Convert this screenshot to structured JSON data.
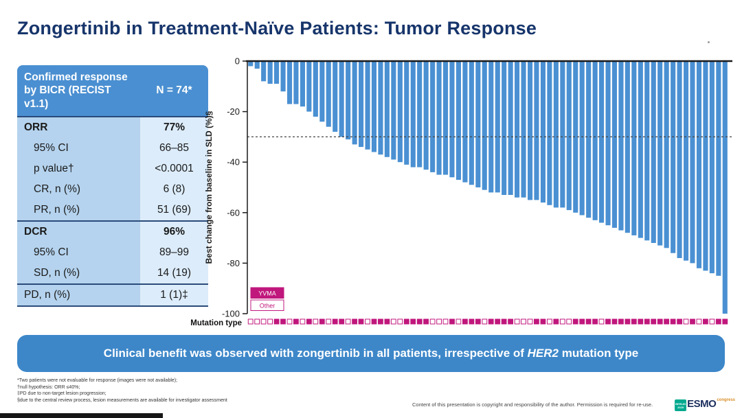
{
  "title": "Zongertinib in Treatment-Naïve Patients: Tumor Response",
  "table": {
    "header": {
      "label": "Confirmed response by BICR (RECIST v1.1)",
      "value": "N = 74*"
    },
    "rows": [
      {
        "label": "ORR",
        "value": "77%",
        "bold": true,
        "indent": false,
        "sep": true
      },
      {
        "label": "95% CI",
        "value": "66–85",
        "bold": false,
        "indent": true,
        "sep": false
      },
      {
        "label": "p value†",
        "value": "<0.0001",
        "bold": false,
        "indent": true,
        "sep": false
      },
      {
        "label": "CR, n (%)",
        "value": "6 (8)",
        "bold": false,
        "indent": true,
        "sep": false
      },
      {
        "label": "PR, n (%)",
        "value": "51 (69)",
        "bold": false,
        "indent": true,
        "sep": false
      },
      {
        "label": "DCR",
        "value": "96%",
        "bold": true,
        "indent": false,
        "sep": true
      },
      {
        "label": "95% CI",
        "value": "89–99",
        "bold": false,
        "indent": true,
        "sep": false
      },
      {
        "label": "SD, n (%)",
        "value": "14 (19)",
        "bold": false,
        "indent": true,
        "sep": false
      },
      {
        "label": "PD, n (%)",
        "value": "1 (1)‡",
        "bold": false,
        "indent": false,
        "sep": true
      }
    ]
  },
  "chart_data": {
    "type": "bar",
    "subtype": "waterfall",
    "ylabel": "Best change from baseline in SLD (%)§",
    "x_axis_label": "Mutation type",
    "ylim": [
      -100,
      0
    ],
    "yticks": [
      0,
      -20,
      -40,
      -60,
      -80,
      -100
    ],
    "reference_line": -30,
    "bar_color": "#4a90d2",
    "marker_color": "#c0177c",
    "n_patients": 74,
    "legend": [
      {
        "label": "YVMA",
        "filled": true
      },
      {
        "label": "Other",
        "filled": false
      }
    ],
    "values": [
      -2,
      -3,
      -8,
      -9,
      -9,
      -12,
      -17,
      -17,
      -18,
      -20,
      -22,
      -24,
      -26,
      -28,
      -30,
      -31,
      -33,
      -34,
      -35,
      -36,
      -37,
      -38,
      -39,
      -40,
      -41,
      -42,
      -42,
      -43,
      -44,
      -45,
      -45,
      -46,
      -47,
      -48,
      -49,
      -50,
      -51,
      -52,
      -52,
      -53,
      -53,
      -54,
      -54,
      -55,
      -55,
      -56,
      -57,
      -58,
      -58,
      -59,
      -60,
      -61,
      -62,
      -63,
      -64,
      -65,
      -66,
      -67,
      -68,
      -69,
      -70,
      -71,
      -72,
      -73,
      -74,
      -76,
      -78,
      -79,
      -80,
      -82,
      -83,
      -84,
      -85,
      -100
    ],
    "mutation_type_per_patient": [
      "Other",
      "Other",
      "Other",
      "Other",
      "YVMA",
      "YVMA",
      "Other",
      "YVMA",
      "Other",
      "YVMA",
      "Other",
      "YVMA",
      "Other",
      "YVMA",
      "YVMA",
      "Other",
      "YVMA",
      "YVMA",
      "Other",
      "YVMA",
      "YVMA",
      "YVMA",
      "Other",
      "Other",
      "YVMA",
      "YVMA",
      "YVMA",
      "YVMA",
      "Other",
      "Other",
      "Other",
      "YVMA",
      "Other",
      "YVMA",
      "YVMA",
      "YVMA",
      "Other",
      "YVMA",
      "YVMA",
      "YVMA",
      "YVMA",
      "Other",
      "Other",
      "Other",
      "YVMA",
      "YVMA",
      "Other",
      "YVMA",
      "Other",
      "Other",
      "YVMA",
      "YVMA",
      "YVMA",
      "YVMA",
      "Other",
      "YVMA",
      "YVMA",
      "YVMA",
      "YVMA",
      "YVMA",
      "YVMA",
      "YVMA",
      "YVMA",
      "YVMA",
      "YVMA",
      "YVMA",
      "YVMA",
      "Other",
      "YVMA",
      "Other",
      "YVMA",
      "Other",
      "YVMA",
      "YVMA"
    ]
  },
  "banner": {
    "text_before": "Clinical benefit was observed with zongertinib in all patients, irrespective of ",
    "italic": "HER2",
    "text_after": " mutation type"
  },
  "footnotes": [
    "*Two patients were not evaluable for response (images were not available);",
    "†null hypothesis: ORR ≤40%;",
    "‡PD due to non-target lesion progression;",
    "§due to the central review process, lesion measurements are available for investigator assessment"
  ],
  "copyright": "Content of this presentation is copyright and responsibility of the author. Permission is required for re-use.",
  "logo": {
    "venue": "BERLIN 2025",
    "name": "ESMO",
    "suffix": "congress"
  }
}
